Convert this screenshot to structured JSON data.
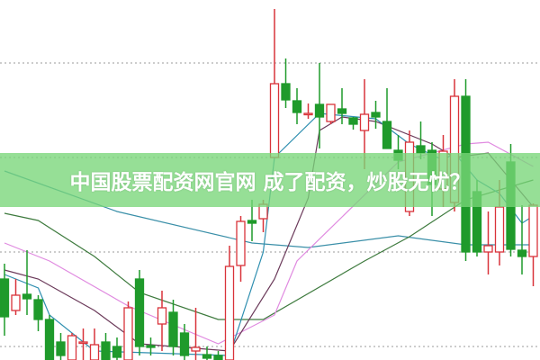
{
  "banner": {
    "text": "中国股票配资网官网 成了配资，炒股无忧？"
  },
  "colors": {
    "up": "#d9333a",
    "down": "#1f9a2b",
    "grid": "#999999",
    "banner": "#8fe08f"
  },
  "chart_data": {
    "type": "candlestick",
    "title": "",
    "xlabel": "",
    "ylabel": "",
    "ylim": [
      0,
      40
    ],
    "grid": {
      "horizontal": true,
      "style": "dotted",
      "levels": [
        33,
        22.5,
        12,
        1.5
      ]
    },
    "candles": [
      [
        9.0,
        10.7,
        2.7,
        4.8
      ],
      [
        5.5,
        9.0,
        5.0,
        7.2
      ],
      [
        7.3,
        12.2,
        5.0,
        6.8
      ],
      [
        6.7,
        7.2,
        3.2,
        4.5
      ],
      [
        4.5,
        5.0,
        0,
        0
      ],
      [
        2.0,
        3.0,
        0,
        0.5
      ],
      [
        0,
        3.0,
        0,
        2.7
      ],
      [
        2.0,
        3.5,
        0,
        2.0
      ],
      [
        0,
        3.5,
        0,
        1.7
      ],
      [
        2.0,
        3.0,
        0,
        0
      ],
      [
        1.5,
        2.5,
        0,
        0.3
      ],
      [
        0,
        6.5,
        0,
        5.8
      ],
      [
        9.0,
        10.0,
        0.5,
        1.5
      ],
      [
        1.6,
        2.5,
        0.5,
        1.4
      ],
      [
        4.0,
        7.7,
        1.0,
        5.8
      ],
      [
        5.3,
        6.7,
        0.5,
        1.5
      ],
      [
        3.0,
        4.0,
        0,
        0.5
      ],
      [
        1.0,
        5.8,
        0,
        1.4
      ],
      [
        0.6,
        1.5,
        0,
        0.2
      ],
      [
        0.5,
        1.0,
        0,
        0
      ],
      [
        0,
        12.7,
        0,
        10.4
      ],
      [
        10.5,
        16.0,
        8.7,
        15.4
      ],
      [
        15.5,
        17.8,
        13.2,
        15.2
      ],
      [
        15.7,
        17.8,
        14.2,
        17.3
      ],
      [
        22.5,
        39.0,
        22.5,
        30.7
      ],
      [
        30.7,
        33.5,
        28.0,
        28.9
      ],
      [
        28.8,
        30.2,
        26.2,
        27.5
      ],
      [
        27.4,
        28.5,
        26.8,
        27.4
      ],
      [
        28.4,
        33.0,
        23.5,
        27.0
      ],
      [
        26.5,
        28.4,
        26.2,
        28.4
      ],
      [
        27.9,
        30.2,
        26.2,
        27.4
      ],
      [
        26.9,
        27.0,
        25.6,
        26.2
      ],
      [
        25.5,
        31.2,
        21.2,
        27.3
      ],
      [
        27.5,
        28.8,
        25.7,
        27.0
      ],
      [
        26.5,
        30.2,
        23.5,
        23.5
      ],
      [
        23.3,
        25.0,
        21.2,
        22.2
      ],
      [
        16.5,
        25.5,
        16.0,
        24.2
      ],
      [
        23.8,
        26.5,
        22.3,
        23.0
      ],
      [
        23.3,
        24.2,
        16.0,
        19.5
      ],
      [
        19.0,
        25.0,
        17.0,
        23.2
      ],
      [
        17.5,
        31.2,
        16.5,
        29.3
      ],
      [
        29.3,
        31.2,
        11.0,
        12.0
      ],
      [
        18.7,
        20.0,
        11.5,
        12.0
      ],
      [
        12.0,
        16.5,
        9.5,
        12.7
      ],
      [
        12.0,
        20.0,
        10.5,
        17.0
      ],
      [
        22.0,
        24.0,
        11.5,
        12.3
      ],
      [
        12.2,
        17.2,
        9.5,
        11.5
      ],
      [
        11.5,
        17.4,
        8.2,
        17.2
      ]
    ],
    "candle_fields": [
      "open",
      "high",
      "low",
      "close"
    ],
    "moving_averages": [
      {
        "color": "#2f8fb0",
        "points": [
          [
            0,
            9.5
          ],
          [
            3,
            8.0
          ],
          [
            4,
            5.0
          ],
          [
            8,
            1.0
          ],
          [
            20,
            0.5
          ],
          [
            23,
            12.0
          ],
          [
            24,
            22.5
          ],
          [
            28,
            27.4
          ],
          [
            33,
            26.8
          ],
          [
            36,
            24.0
          ],
          [
            39,
            22.2
          ],
          [
            40,
            23.0
          ],
          [
            42,
            20.0
          ],
          [
            44,
            18.5
          ],
          [
            46,
            15.2
          ],
          [
            47,
            16.0
          ]
        ]
      },
      {
        "color": "#6b3a5a",
        "points": [
          [
            0,
            10.0
          ],
          [
            3,
            9.0
          ],
          [
            8,
            5.5
          ],
          [
            12,
            1.8
          ],
          [
            20,
            1.0
          ],
          [
            24,
            9.0
          ],
          [
            27,
            18.0
          ],
          [
            28,
            25.5
          ],
          [
            30,
            27.0
          ],
          [
            33,
            26.5
          ],
          [
            38,
            24.0
          ],
          [
            40,
            22.5
          ],
          [
            43,
            23.0
          ],
          [
            47,
            17.0
          ]
        ]
      },
      {
        "color": "#e08ae0",
        "points": [
          [
            0,
            13.0
          ],
          [
            4,
            11.0
          ],
          [
            11,
            6.0
          ],
          [
            19,
            1.8
          ],
          [
            24,
            5.0
          ],
          [
            26,
            11.0
          ],
          [
            35,
            22.0
          ],
          [
            41,
            24.0
          ],
          [
            43,
            24.2
          ],
          [
            47,
            21.5
          ]
        ]
      },
      {
        "color": "#3d7a3d",
        "points": [
          [
            0,
            16.3
          ],
          [
            3,
            15.5
          ],
          [
            8,
            11.5
          ],
          [
            12,
            7.5
          ],
          [
            19,
            4.5
          ],
          [
            23,
            4.5
          ],
          [
            32,
            11.0
          ],
          [
            36,
            13.7
          ],
          [
            41,
            17.8
          ],
          [
            47,
            20.0
          ]
        ]
      },
      {
        "color": "#3a8fa8",
        "points": [
          [
            0,
            21.0
          ],
          [
            10,
            16.5
          ],
          [
            22,
            13.0
          ],
          [
            27,
            12.5
          ],
          [
            35,
            13.8
          ],
          [
            41,
            12.8
          ],
          [
            47,
            12.8
          ]
        ]
      }
    ]
  }
}
